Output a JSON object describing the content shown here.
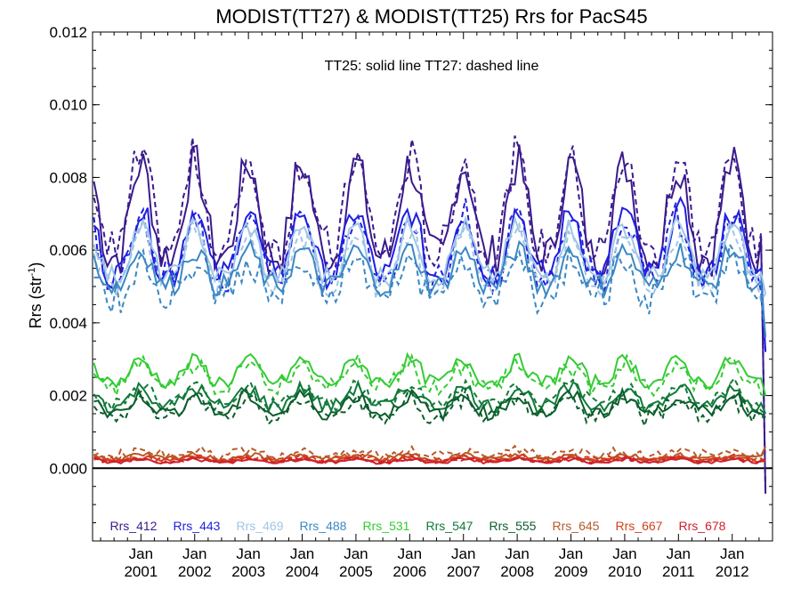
{
  "chart_data": {
    "type": "line",
    "title": "MODIST(TT27) & MODIST(TT25)  Rrs for PacS45",
    "ylabel_main": "Rrs (str",
    "ylabel_sup": "-1",
    "ylabel_close": ")",
    "annotation": "TT25: solid line   TT27: dashed line",
    "ylim": [
      -0.002,
      0.012
    ],
    "yticks": [
      0.0,
      0.002,
      0.004,
      0.006,
      0.008,
      0.01,
      0.012
    ],
    "ytick_labels": [
      "0.000",
      "0.002",
      "0.004",
      "0.006",
      "0.008",
      "0.010",
      "0.012"
    ],
    "xlim": [
      2000.1,
      2012.75
    ],
    "xticks": [
      {
        "x": 2001.0,
        "month": "Jan",
        "year": "2001"
      },
      {
        "x": 2002.0,
        "month": "Jan",
        "year": "2002"
      },
      {
        "x": 2003.0,
        "month": "Jan",
        "year": "2003"
      },
      {
        "x": 2004.0,
        "month": "Jan",
        "year": "2004"
      },
      {
        "x": 2005.0,
        "month": "Jan",
        "year": "2005"
      },
      {
        "x": 2006.0,
        "month": "Jan",
        "year": "2006"
      },
      {
        "x": 2007.0,
        "month": "Jan",
        "year": "2007"
      },
      {
        "x": 2008.0,
        "month": "Jan",
        "year": "2008"
      },
      {
        "x": 2009.0,
        "month": "Jan",
        "year": "2009"
      },
      {
        "x": 2010.0,
        "month": "Jan",
        "year": "2010"
      },
      {
        "x": 2011.0,
        "month": "Jan",
        "year": "2011"
      },
      {
        "x": 2012.0,
        "month": "Jan",
        "year": "2012"
      }
    ],
    "time_step_years": 0.0833,
    "start_x": 2000.125,
    "peak_month_offset": 0.0,
    "series": [
      {
        "name": "Rrs_412",
        "color": "#3a1a8c",
        "base": 0.0068,
        "amp": 0.0026,
        "noise": 0.0006,
        "dash_offset": 0.0003,
        "end_dip": -0.0007
      },
      {
        "name": "Rrs_443",
        "color": "#1f1fe0",
        "base": 0.006,
        "amp": 0.0018,
        "noise": 0.0004,
        "dash_offset": -0.0003,
        "end_dip": 0.0032
      },
      {
        "name": "Rrs_469",
        "color": "#9fc6e6",
        "base": 0.0058,
        "amp": 0.0014,
        "noise": 0.0003,
        "dash_offset": -0.0004,
        "end_dip": 0.0048
      },
      {
        "name": "Rrs_488",
        "color": "#3b88c4",
        "base": 0.0054,
        "amp": 0.001,
        "noise": 0.0003,
        "dash_offset": -0.0006,
        "end_dip": 0.0036
      },
      {
        "name": "Rrs_531",
        "color": "#33cc33",
        "base": 0.0026,
        "amp": 0.0006,
        "noise": 0.0002,
        "dash_offset": -0.0003,
        "end_dip": 0.002
      },
      {
        "name": "Rrs_547",
        "color": "#117a3a",
        "base": 0.0019,
        "amp": 0.0005,
        "noise": 0.0002,
        "dash_offset": 0.0001,
        "end_dip": 0.0015
      },
      {
        "name": "Rrs_555",
        "color": "#0c5e2c",
        "base": 0.0017,
        "amp": 0.0005,
        "noise": 0.0002,
        "dash_offset": -0.0002,
        "end_dip": 0.0014
      },
      {
        "name": "Rrs_645",
        "color": "#b85a28",
        "base": 0.0003,
        "amp": 0.0001,
        "noise": 8e-05,
        "dash_offset": 0.0002,
        "end_dip": 0.0006
      },
      {
        "name": "Rrs_667",
        "color": "#d2401c",
        "base": 0.00025,
        "amp": 8e-05,
        "noise": 6e-05,
        "dash_offset": 5e-05,
        "end_dip": 0.0002
      },
      {
        "name": "Rrs_678",
        "color": "#d0202e",
        "base": 0.0002,
        "amp": 8e-05,
        "noise": 5e-05,
        "dash_offset": 3e-05,
        "end_dip": 0.0002
      }
    ]
  }
}
